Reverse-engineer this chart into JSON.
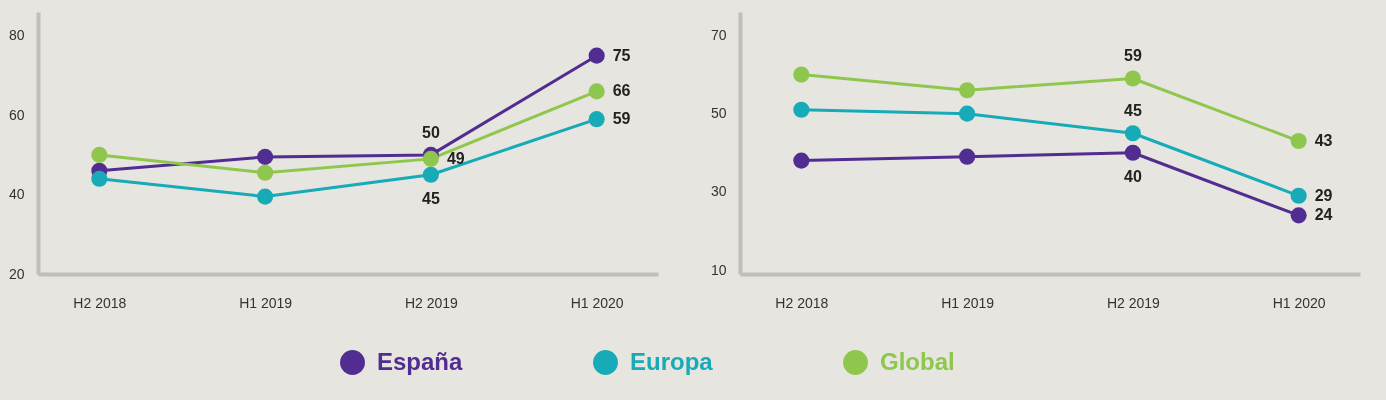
{
  "chart_data": [
    {
      "type": "line",
      "categories": [
        "H2 2018",
        "H1 2019",
        "H2 2019",
        "H1 2020"
      ],
      "ylim": [
        20,
        86
      ],
      "yticks": [
        20,
        40,
        60,
        80
      ],
      "grid": false,
      "legend": "bottom",
      "marker": "circle",
      "line_style": "solid",
      "series": [
        {
          "name": "España",
          "color": "#522d91",
          "values": [
            46,
            49.5,
            50,
            75
          ],
          "value_labels": [
            null,
            null,
            "50",
            "75"
          ]
        },
        {
          "name": "Europa",
          "color": "#17aab7",
          "values": [
            44,
            39.5,
            45,
            59
          ],
          "value_labels": [
            null,
            null,
            "45",
            "59"
          ]
        },
        {
          "name": "Global",
          "color": "#8fc74e",
          "values": [
            50,
            45.5,
            49,
            66
          ],
          "value_labels": [
            null,
            null,
            "49",
            "66"
          ]
        }
      ]
    },
    {
      "type": "line",
      "categories": [
        "H2 2018",
        "H1 2019",
        "H2 2019",
        "H1 2020"
      ],
      "ylim": [
        9,
        76
      ],
      "yticks": [
        10,
        30,
        50,
        70
      ],
      "grid": false,
      "legend": "bottom",
      "marker": "circle",
      "line_style": "solid",
      "series": [
        {
          "name": "España",
          "color": "#522d91",
          "values": [
            38,
            39,
            40,
            24
          ],
          "value_labels": [
            null,
            null,
            "40",
            "24"
          ]
        },
        {
          "name": "Europa",
          "color": "#17aab7",
          "values": [
            51,
            50,
            45,
            29
          ],
          "value_labels": [
            null,
            null,
            "45",
            "29"
          ]
        },
        {
          "name": "Global",
          "color": "#8fc74e",
          "values": [
            60,
            56,
            59,
            43
          ],
          "value_labels": [
            null,
            null,
            "59",
            "43"
          ]
        }
      ]
    }
  ]
}
